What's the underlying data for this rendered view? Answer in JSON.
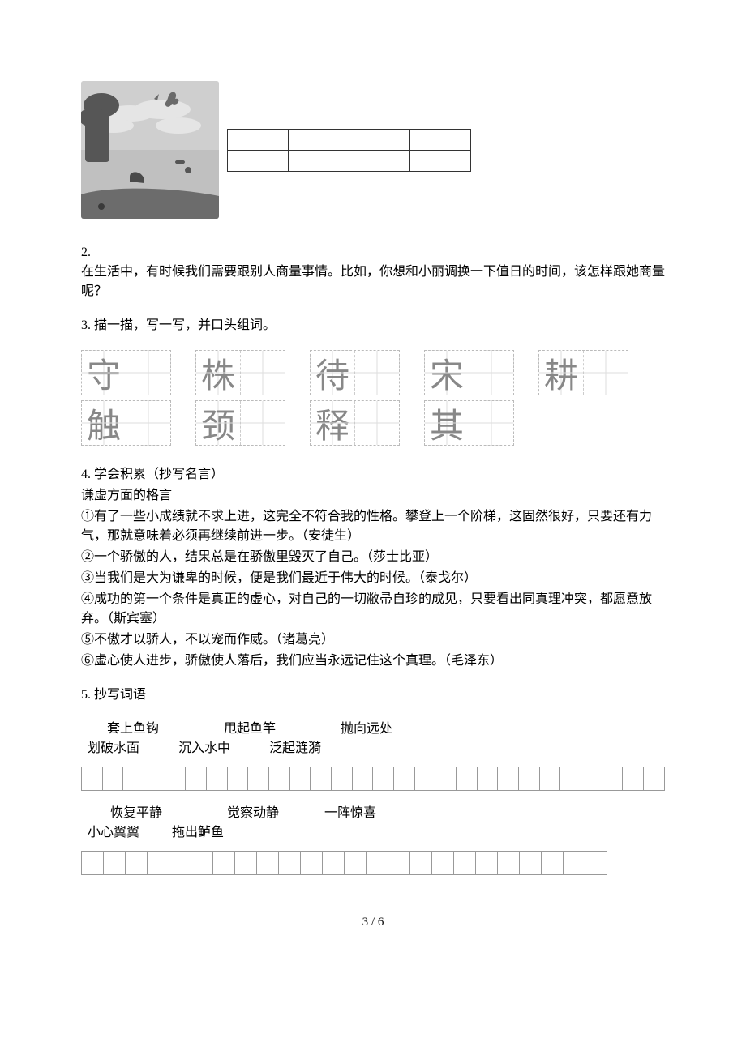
{
  "illustration": {
    "bg_sky": "#c9c9c9",
    "cloud_color": "#e8e8e8",
    "tree_color": "#5b5b5b",
    "water_color": "#bfbfbf",
    "foreground_color": "#6c6c6c"
  },
  "small_grid": {
    "rows": 2,
    "cols": 4
  },
  "q2": {
    "number": "2.",
    "text": "在生活中，有时候我们需要跟别人商量事情。比如，你想和小丽调换一下值日的时间，该怎样跟她商量呢？"
  },
  "q3": {
    "heading": "3. 描一描，写一写，并口头组词。",
    "row1": [
      "守",
      "株",
      "待",
      "宋",
      "耕"
    ],
    "row2": [
      "触",
      "颈",
      "释",
      "其"
    ]
  },
  "q4": {
    "heading": "4. 学会积累（抄写名言）",
    "subheading": "谦虚方面的格言",
    "items": [
      "①有了一些小成绩就不求上进，这完全不符合我的性格。攀登上一个阶梯，这固然很好，只要还有力气，那就意味着必须再继续前进一步。（安徒生）",
      "②一个骄傲的人，结果总是在骄傲里毁灭了自己。（莎士比亚）",
      "③当我们是大为谦卑的时候，便是我们最近于伟大的时候。（泰戈尔）",
      "④成功的第一个条件是真正的虚心，对自己的一切敝帚自珍的成见，只要看出同真理冲突，都愿意放弃。（斯宾塞）",
      "⑤不傲才以骄人，不以宠而作威。（诸葛亮）",
      "⑥虚心使人进步，骄傲使人落后，我们应当永远记住这个真理。（毛泽东）"
    ]
  },
  "q5": {
    "heading": "5. 抄写词语",
    "group1_line1": "        套上鱼钩                    甩起鱼竿                    抛向远处",
    "group1_line2": "  划破水面            沉入水中            泛起涟漪",
    "group2_line1": "         恢复平静                    觉察动静              一阵惊喜",
    "group2_line2": "  小心翼翼          拖出鲈鱼",
    "cells_count1": 28,
    "cells_count2": 24
  },
  "footer": "3 / 6"
}
